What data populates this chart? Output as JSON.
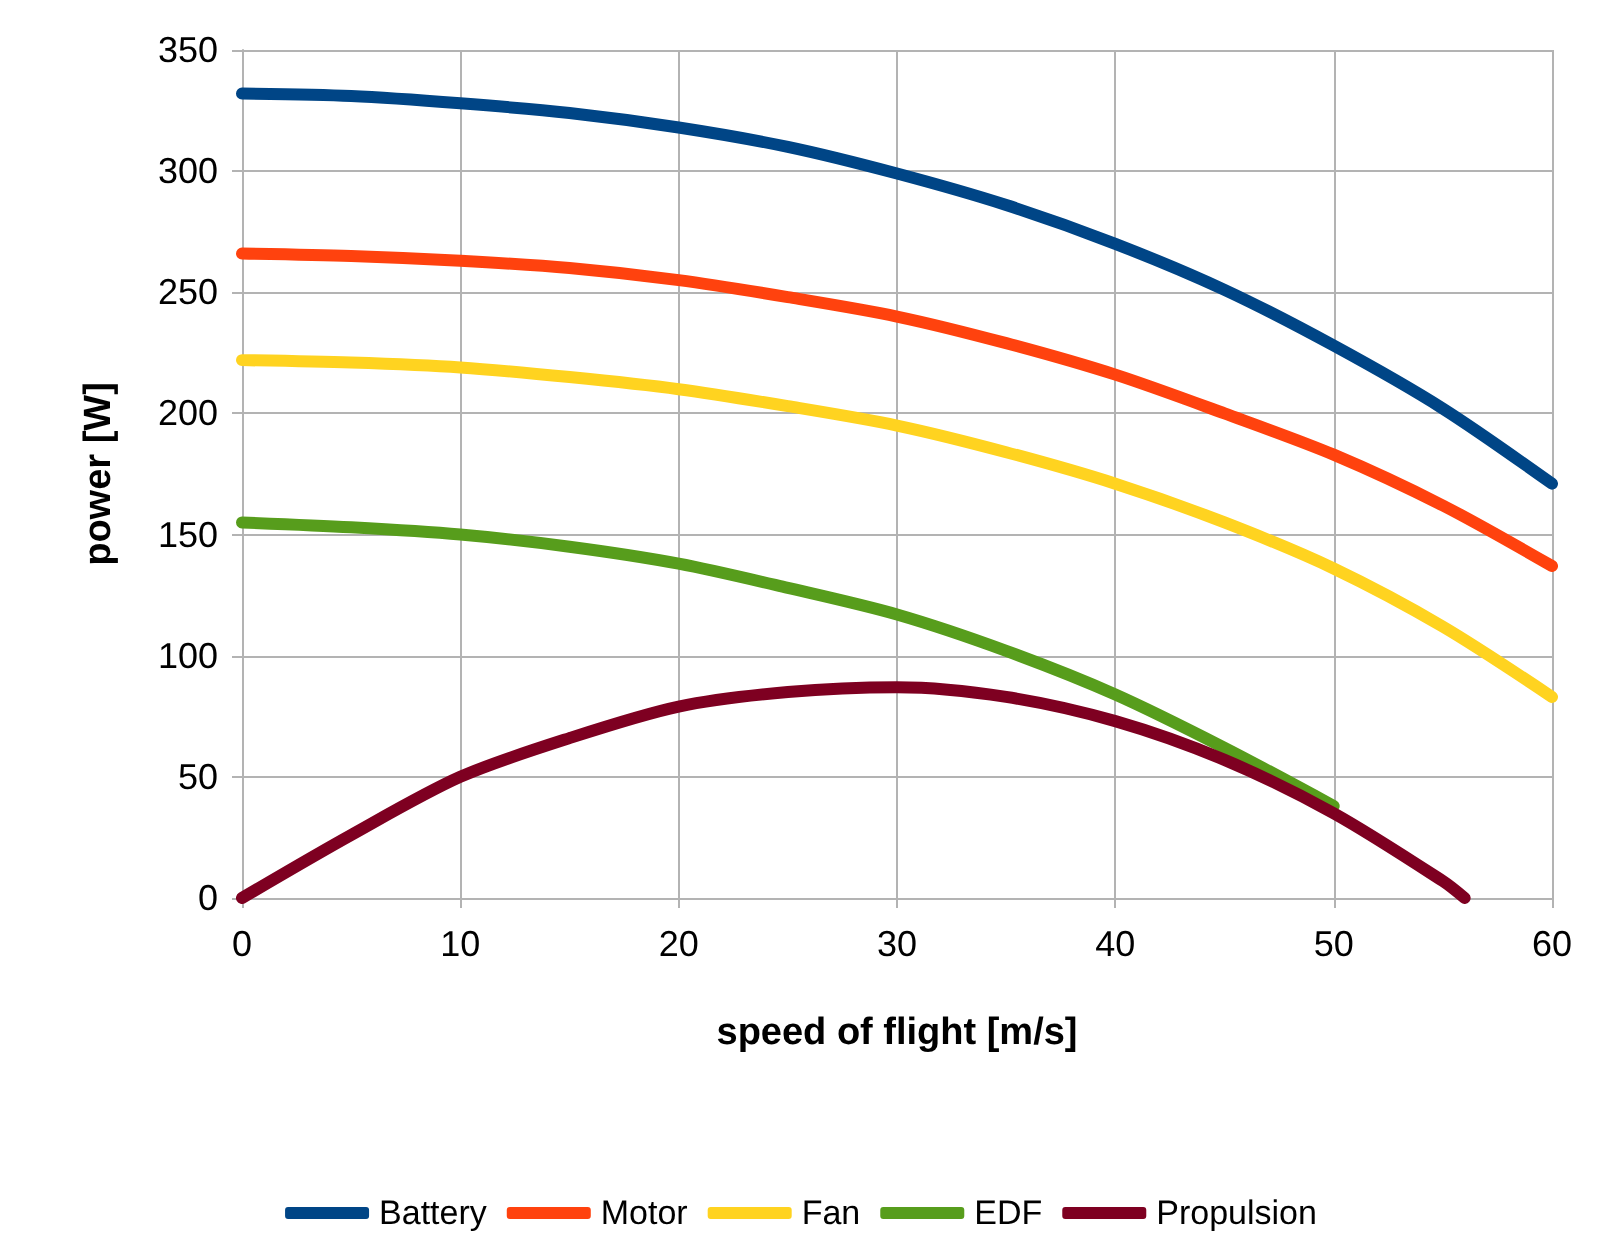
{
  "chart_data": {
    "type": "line",
    "xlabel": "speed of flight [m/s]",
    "ylabel": "power [W]",
    "x": [
      0,
      5,
      10,
      15,
      20,
      25,
      30,
      35,
      40,
      45,
      50,
      55,
      60
    ],
    "series": [
      {
        "name": "Battery",
        "color": "#004586",
        "values": [
          332,
          331,
          328,
          324,
          318,
          310,
          299,
          286,
          270,
          251,
          228,
          202,
          171
        ]
      },
      {
        "name": "Motor",
        "color": "#ff420e",
        "values": [
          266,
          265,
          263,
          260,
          255,
          248,
          240,
          229,
          216,
          200,
          183,
          162,
          137
        ]
      },
      {
        "name": "Fan",
        "color": "#ffd320",
        "values": [
          222,
          221,
          219,
          215,
          210,
          203,
          195,
          184,
          171,
          155,
          136,
          112,
          83
        ]
      },
      {
        "name": "EDF",
        "color": "#579d1c",
        "values": [
          155,
          153,
          150,
          145,
          138,
          128,
          117,
          102,
          84,
          62,
          38,
          null,
          null
        ]
      },
      {
        "name": "Propulsion",
        "color": "#7e0021",
        "x": [
          0,
          5,
          10,
          15,
          20,
          25,
          30,
          35,
          40,
          45,
          50,
          55,
          56
        ],
        "values": [
          0,
          26,
          50,
          66,
          79,
          85,
          87,
          83,
          73,
          57,
          35,
          7,
          0
        ]
      }
    ],
    "xlim": [
      0,
      60
    ],
    "xticks": [
      0,
      10,
      20,
      30,
      40,
      50,
      60
    ],
    "ylim": [
      0,
      350
    ],
    "yticks": [
      0,
      50,
      100,
      150,
      200,
      250,
      300,
      350
    ],
    "grid": true,
    "legend": "bottom",
    "marker": "none",
    "line_style": "solid"
  }
}
